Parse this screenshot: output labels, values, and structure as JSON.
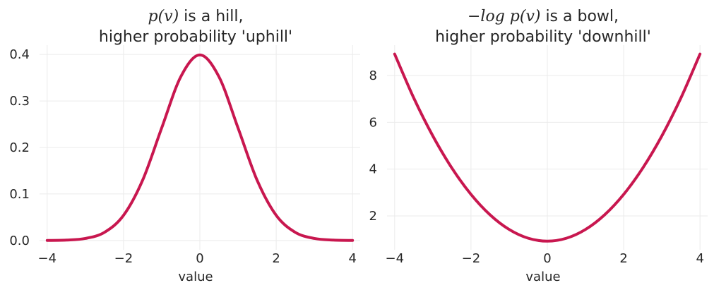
{
  "chart_data": [
    {
      "type": "line",
      "title_line1_math": "p(v)",
      "title_line1_rest": " is a hill,",
      "title_line2": "higher probability 'uphill'",
      "xlabel": "value",
      "ylabel": "",
      "xlim": [
        -4.2,
        4.2
      ],
      "ylim": [
        -0.02,
        0.42
      ],
      "xticks": [
        -4,
        -2,
        0,
        2,
        4
      ],
      "xtick_labels": [
        "−4",
        "−2",
        "0",
        "2",
        "4"
      ],
      "yticks": [
        0.0,
        0.1,
        0.2,
        0.3,
        0.4
      ],
      "ytick_labels": [
        "0.0",
        "0.1",
        "0.2",
        "0.3",
        "0.4"
      ],
      "grid": true,
      "series": [
        {
          "color": "#c8174f",
          "x": [
            -4.0,
            -3.5,
            -3.0,
            -2.5,
            -2.0,
            -1.5,
            -1.0,
            -0.5,
            0.0,
            0.5,
            1.0,
            1.5,
            2.0,
            2.5,
            3.0,
            3.5,
            4.0
          ],
          "y": [
            0.0001,
            0.0009,
            0.0044,
            0.0175,
            0.054,
            0.1295,
            0.242,
            0.3521,
            0.3989,
            0.3521,
            0.242,
            0.1295,
            0.054,
            0.0175,
            0.0044,
            0.0009,
            0.0001
          ]
        }
      ]
    },
    {
      "type": "line",
      "title_line1_math": "−log p(v)",
      "title_line1_rest": " is a bowl,",
      "title_line2": "higher probability 'downhill'",
      "xlabel": "value",
      "ylabel": "",
      "xlim": [
        -4.2,
        4.2
      ],
      "ylim": [
        0.55,
        9.3
      ],
      "xticks": [
        -4,
        -2,
        0,
        2,
        4
      ],
      "xtick_labels": [
        "−4",
        "−2",
        "0",
        "2",
        "4"
      ],
      "yticks": [
        2,
        4,
        6,
        8
      ],
      "ytick_labels": [
        "2",
        "4",
        "6",
        "8"
      ],
      "grid": true,
      "series": [
        {
          "color": "#c8174f",
          "x": [
            -4.0,
            -3.5,
            -3.0,
            -2.5,
            -2.0,
            -1.5,
            -1.0,
            -0.5,
            0.0,
            0.5,
            1.0,
            1.5,
            2.0,
            2.5,
            3.0,
            3.5,
            4.0
          ],
          "y": [
            8.919,
            7.044,
            5.419,
            4.044,
            2.919,
            2.044,
            1.419,
            1.044,
            0.919,
            1.044,
            1.419,
            2.044,
            2.919,
            4.044,
            5.419,
            7.044,
            8.919
          ]
        }
      ]
    }
  ]
}
